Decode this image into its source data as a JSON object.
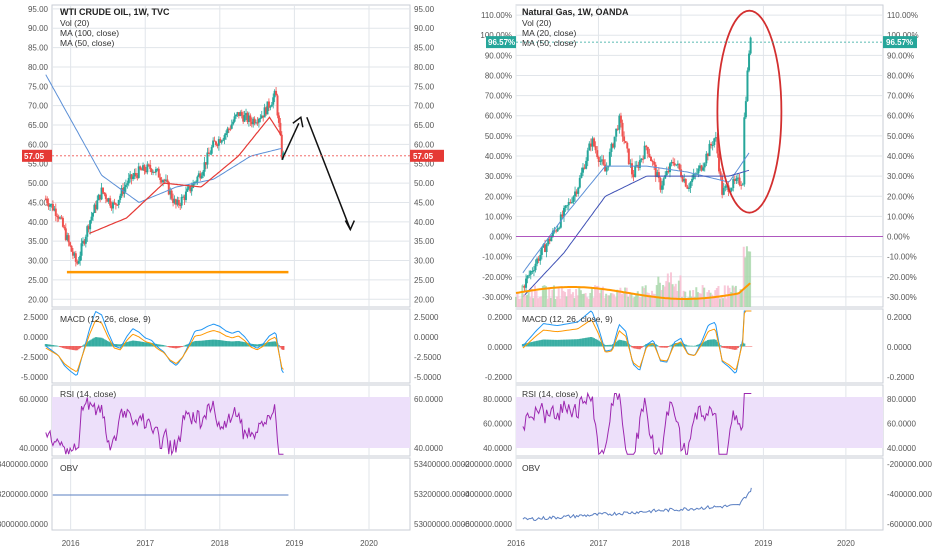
{
  "colors": {
    "up": "#26a69a",
    "down": "#ef5350",
    "blue": "#5b8fd6",
    "red_ma": "#e53935",
    "orange": "#ff9800",
    "rsi_line": "#9c27b0",
    "rsi_band": "#ede0fa",
    "obv_line": "#5a7fc2",
    "grid": "#e1e5ea",
    "axis": "#555555",
    "annotation": "#d32f2f"
  },
  "x_labels": [
    "2016",
    "2017",
    "2018",
    "2019",
    "2020"
  ],
  "panels": [
    {
      "id": "crude",
      "title": "WTI CRUDE OIL, 1W, TVC",
      "indicators": [
        "Vol (20)",
        "MA (100, close)",
        "MA (50, close)"
      ],
      "y_ticks": [
        "95.00",
        "90.00",
        "85.00",
        "80.00",
        "75.00",
        "70.00",
        "65.00",
        "60.00",
        "55.00",
        "50.00",
        "45.00",
        "40.00",
        "35.00",
        "30.00",
        "25.00",
        "20.00"
      ],
      "price_label": "57.05",
      "macd": {
        "title": "MACD (12, 26, close, 9)",
        "ticks": [
          "2.5000",
          "0.0000",
          "-2.5000",
          "-5.0000"
        ]
      },
      "rsi": {
        "title": "RSI (14, close)",
        "ticks": [
          "60.0000",
          "40.0000"
        ]
      },
      "obv": {
        "title": "OBV",
        "ticks": [
          "53400000.0000",
          "53200000.0000",
          "53000000.0000"
        ]
      }
    },
    {
      "id": "gas",
      "title": "Natural Gas, 1W, OANDA",
      "indicators": [
        "Vol (20)",
        "MA (20, close)",
        "MA (50, close)"
      ],
      "y_ticks": [
        "110.00%",
        "100.00%",
        "90.00%",
        "80.00%",
        "70.00%",
        "60.00%",
        "50.00%",
        "40.00%",
        "30.00%",
        "20.00%",
        "10.00%",
        "0.00%",
        "-10.00%",
        "-20.00%",
        "-30.00%"
      ],
      "price_label": "96.57%",
      "macd": {
        "title": "MACD (12, 26, close, 9)",
        "ticks": [
          "0.2000",
          "0.0000",
          "-0.2000"
        ]
      },
      "rsi": {
        "title": "RSI (14, close)",
        "ticks": [
          "80.0000",
          "60.0000",
          "40.0000"
        ]
      },
      "obv": {
        "title": "OBV",
        "ticks": [
          "-200000.0000",
          "-400000.0000",
          "-600000.0000"
        ]
      }
    }
  ],
  "chart_data": [
    {
      "type": "candlestick",
      "title": "WTI CRUDE OIL, 1W, TVC",
      "y_range": [
        18,
        96
      ],
      "x_range": [
        "2015-09",
        "2020-09"
      ],
      "close_anchors": [
        [
          "2015-09",
          46
        ],
        [
          "2015-11",
          42
        ],
        [
          "2016-01",
          33
        ],
        [
          "2016-02",
          29
        ],
        [
          "2016-04",
          40
        ],
        [
          "2016-06",
          48
        ],
        [
          "2016-08",
          44
        ],
        [
          "2016-10",
          50
        ],
        [
          "2016-12",
          53
        ],
        [
          "2017-02",
          54
        ],
        [
          "2017-04",
          51
        ],
        [
          "2017-06",
          44
        ],
        [
          "2017-08",
          48
        ],
        [
          "2017-10",
          53
        ],
        [
          "2017-12",
          60
        ],
        [
          "2018-02",
          63
        ],
        [
          "2018-04",
          68
        ],
        [
          "2018-06",
          66
        ],
        [
          "2018-08",
          68
        ],
        [
          "2018-10",
          73
        ],
        [
          "2018-11",
          57.05
        ]
      ],
      "last_price": 57.05,
      "support_level": 27,
      "ma100_anchors": [
        [
          "2015-09",
          78
        ],
        [
          "2016-06",
          52
        ],
        [
          "2016-12",
          45
        ],
        [
          "2017-06",
          49
        ],
        [
          "2017-12",
          51
        ],
        [
          "2018-06",
          57
        ],
        [
          "2018-11",
          59
        ]
      ],
      "ma50_anchors": [
        [
          "2016-04",
          37
        ],
        [
          "2016-10",
          41
        ],
        [
          "2017-04",
          50
        ],
        [
          "2017-10",
          49
        ],
        [
          "2018-04",
          57
        ],
        [
          "2018-09",
          67
        ],
        [
          "2018-11",
          62
        ]
      ],
      "projection_path": [
        [
          "2018-11",
          56
        ],
        [
          "2019-03",
          67
        ],
        [
          "2019-10",
          38
        ]
      ]
    },
    {
      "type": "candlestick",
      "title": "Natural Gas, 1W, OANDA",
      "y_range": [
        -35,
        115
      ],
      "x_range": [
        "2016-02",
        "2020-09"
      ],
      "close_anchors": [
        [
          "2016-02",
          -25
        ],
        [
          "2016-04",
          -12
        ],
        [
          "2016-07",
          5
        ],
        [
          "2016-10",
          25
        ],
        [
          "2016-12",
          48
        ],
        [
          "2017-02",
          32
        ],
        [
          "2017-04",
          58
        ],
        [
          "2017-06",
          30
        ],
        [
          "2017-08",
          45
        ],
        [
          "2017-10",
          25
        ],
        [
          "2017-12",
          38
        ],
        [
          "2018-02",
          25
        ],
        [
          "2018-04",
          35
        ],
        [
          "2018-06",
          50
        ],
        [
          "2018-07",
          22
        ],
        [
          "2018-08",
          25
        ],
        [
          "2018-10",
          28
        ],
        [
          "2018-10",
          48
        ],
        [
          "2018-11",
          96.57
        ]
      ],
      "last_price": 96.57,
      "ma20_anchors": [
        [
          "2016-02",
          -18
        ],
        [
          "2016-08",
          10
        ],
        [
          "2017-02",
          35
        ],
        [
          "2017-08",
          35
        ],
        [
          "2018-02",
          32
        ],
        [
          "2018-08",
          27
        ],
        [
          "2018-11",
          42
        ]
      ],
      "ma50_anchors": [
        [
          "2016-02",
          -30
        ],
        [
          "2016-08",
          -8
        ],
        [
          "2017-02",
          20
        ],
        [
          "2017-08",
          30
        ],
        [
          "2018-02",
          30
        ],
        [
          "2018-08",
          30
        ],
        [
          "2018-11",
          33
        ]
      ]
    }
  ]
}
